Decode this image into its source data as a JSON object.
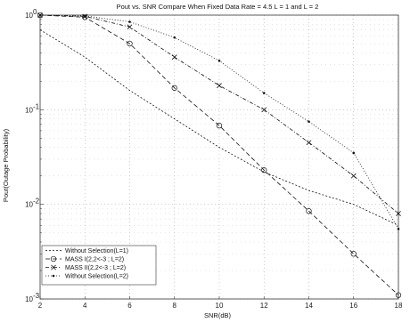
{
  "chart_data": {
    "type": "line",
    "title": "Pout vs. SNR Compare When Fixed Data Rate = 4.5 L = 1 and L = 2",
    "xlabel": "SNR(dB)",
    "ylabel": "Pout(Outage Probability)",
    "xlim": [
      2,
      18
    ],
    "ylim": [
      0.001,
      1
    ],
    "yscale": "log",
    "x_ticks": [
      "2",
      "4",
      "6",
      "8",
      "10",
      "12",
      "14",
      "16",
      "18"
    ],
    "y_ticks": [
      {
        "value": 1,
        "exp": "0"
      },
      {
        "value": 0.1,
        "exp": "-1"
      },
      {
        "value": 0.01,
        "exp": "-2"
      },
      {
        "value": 0.001,
        "exp": "-3"
      }
    ],
    "grid": true,
    "legend_position": "bottom-left",
    "x": [
      2,
      4,
      6,
      8,
      10,
      12,
      14,
      16,
      18
    ],
    "series": [
      {
        "name": "Without Selection(L=1)",
        "dash": "2,2",
        "marker": "none",
        "values": [
          0.7,
          0.36,
          0.16,
          0.08,
          0.04,
          0.022,
          0.014,
          0.01,
          0.006
        ]
      },
      {
        "name": "MASS I(2,2<-3 ; L=2)",
        "dash": "5,3",
        "marker": "circle",
        "values": [
          1.0,
          0.95,
          0.5,
          0.17,
          0.068,
          0.023,
          0.0085,
          0.003,
          0.0011
        ]
      },
      {
        "name": "MASS II(2,2<-3 ; L=2)",
        "dash": "4,2,1,2",
        "marker": "x",
        "values": [
          1.0,
          0.97,
          0.75,
          0.36,
          0.18,
          0.1,
          0.045,
          0.02,
          0.008
        ]
      },
      {
        "name": "Without Selection(L=2)",
        "dash": "1,2",
        "marker": "dot",
        "values": [
          1.0,
          0.98,
          0.85,
          0.58,
          0.33,
          0.15,
          0.075,
          0.035,
          0.0055
        ]
      }
    ]
  }
}
